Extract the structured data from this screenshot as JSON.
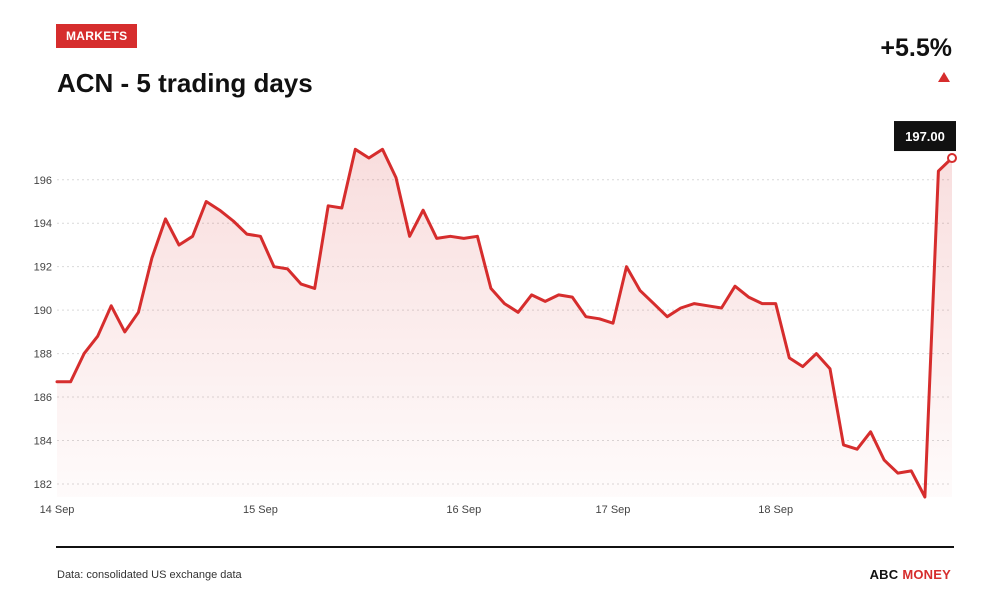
{
  "header": {
    "badge": "MARKETS",
    "title": "ACN - 5 trading days",
    "change": "+5.5%"
  },
  "colors": {
    "accent": "#d62d2d",
    "line": "#d62d2d",
    "text": "#111111"
  },
  "footer": {
    "source": "Data: consolidated US exchange data",
    "brand_part1": "ABC",
    "brand_part2": "MONEY"
  },
  "chart_data": {
    "type": "area",
    "title": "ACN - 5 trading days",
    "xlabel": "",
    "ylabel": "",
    "ylim": [
      181.4,
      197.6
    ],
    "yticks": [
      182,
      184,
      186,
      188,
      190,
      192,
      194,
      196
    ],
    "grid": true,
    "x_ticks": [
      {
        "label": "14 Sep",
        "index": 0
      },
      {
        "label": "15 Sep",
        "index": 15
      },
      {
        "label": "16 Sep",
        "index": 30
      },
      {
        "label": "17 Sep",
        "index": 41
      },
      {
        "label": "18 Sep",
        "index": 53
      }
    ],
    "last_value_label": "197.00",
    "values": [
      186.7,
      186.7,
      188.0,
      188.8,
      190.2,
      189.0,
      189.9,
      192.4,
      194.2,
      193.0,
      193.4,
      195.0,
      194.6,
      194.1,
      193.5,
      193.4,
      192.0,
      191.9,
      191.2,
      191.0,
      194.8,
      194.7,
      197.4,
      197.0,
      197.4,
      196.1,
      193.4,
      194.6,
      193.3,
      193.4,
      193.3,
      193.4,
      191.0,
      190.3,
      189.9,
      190.7,
      190.4,
      190.7,
      190.6,
      189.7,
      189.6,
      189.4,
      192.0,
      190.9,
      190.3,
      189.7,
      190.1,
      190.3,
      190.2,
      190.1,
      191.1,
      190.6,
      190.3,
      190.3,
      187.8,
      187.4,
      188.0,
      187.3,
      183.8,
      183.6,
      184.4,
      183.1,
      182.5,
      182.6,
      181.4,
      196.4,
      197.0
    ]
  }
}
